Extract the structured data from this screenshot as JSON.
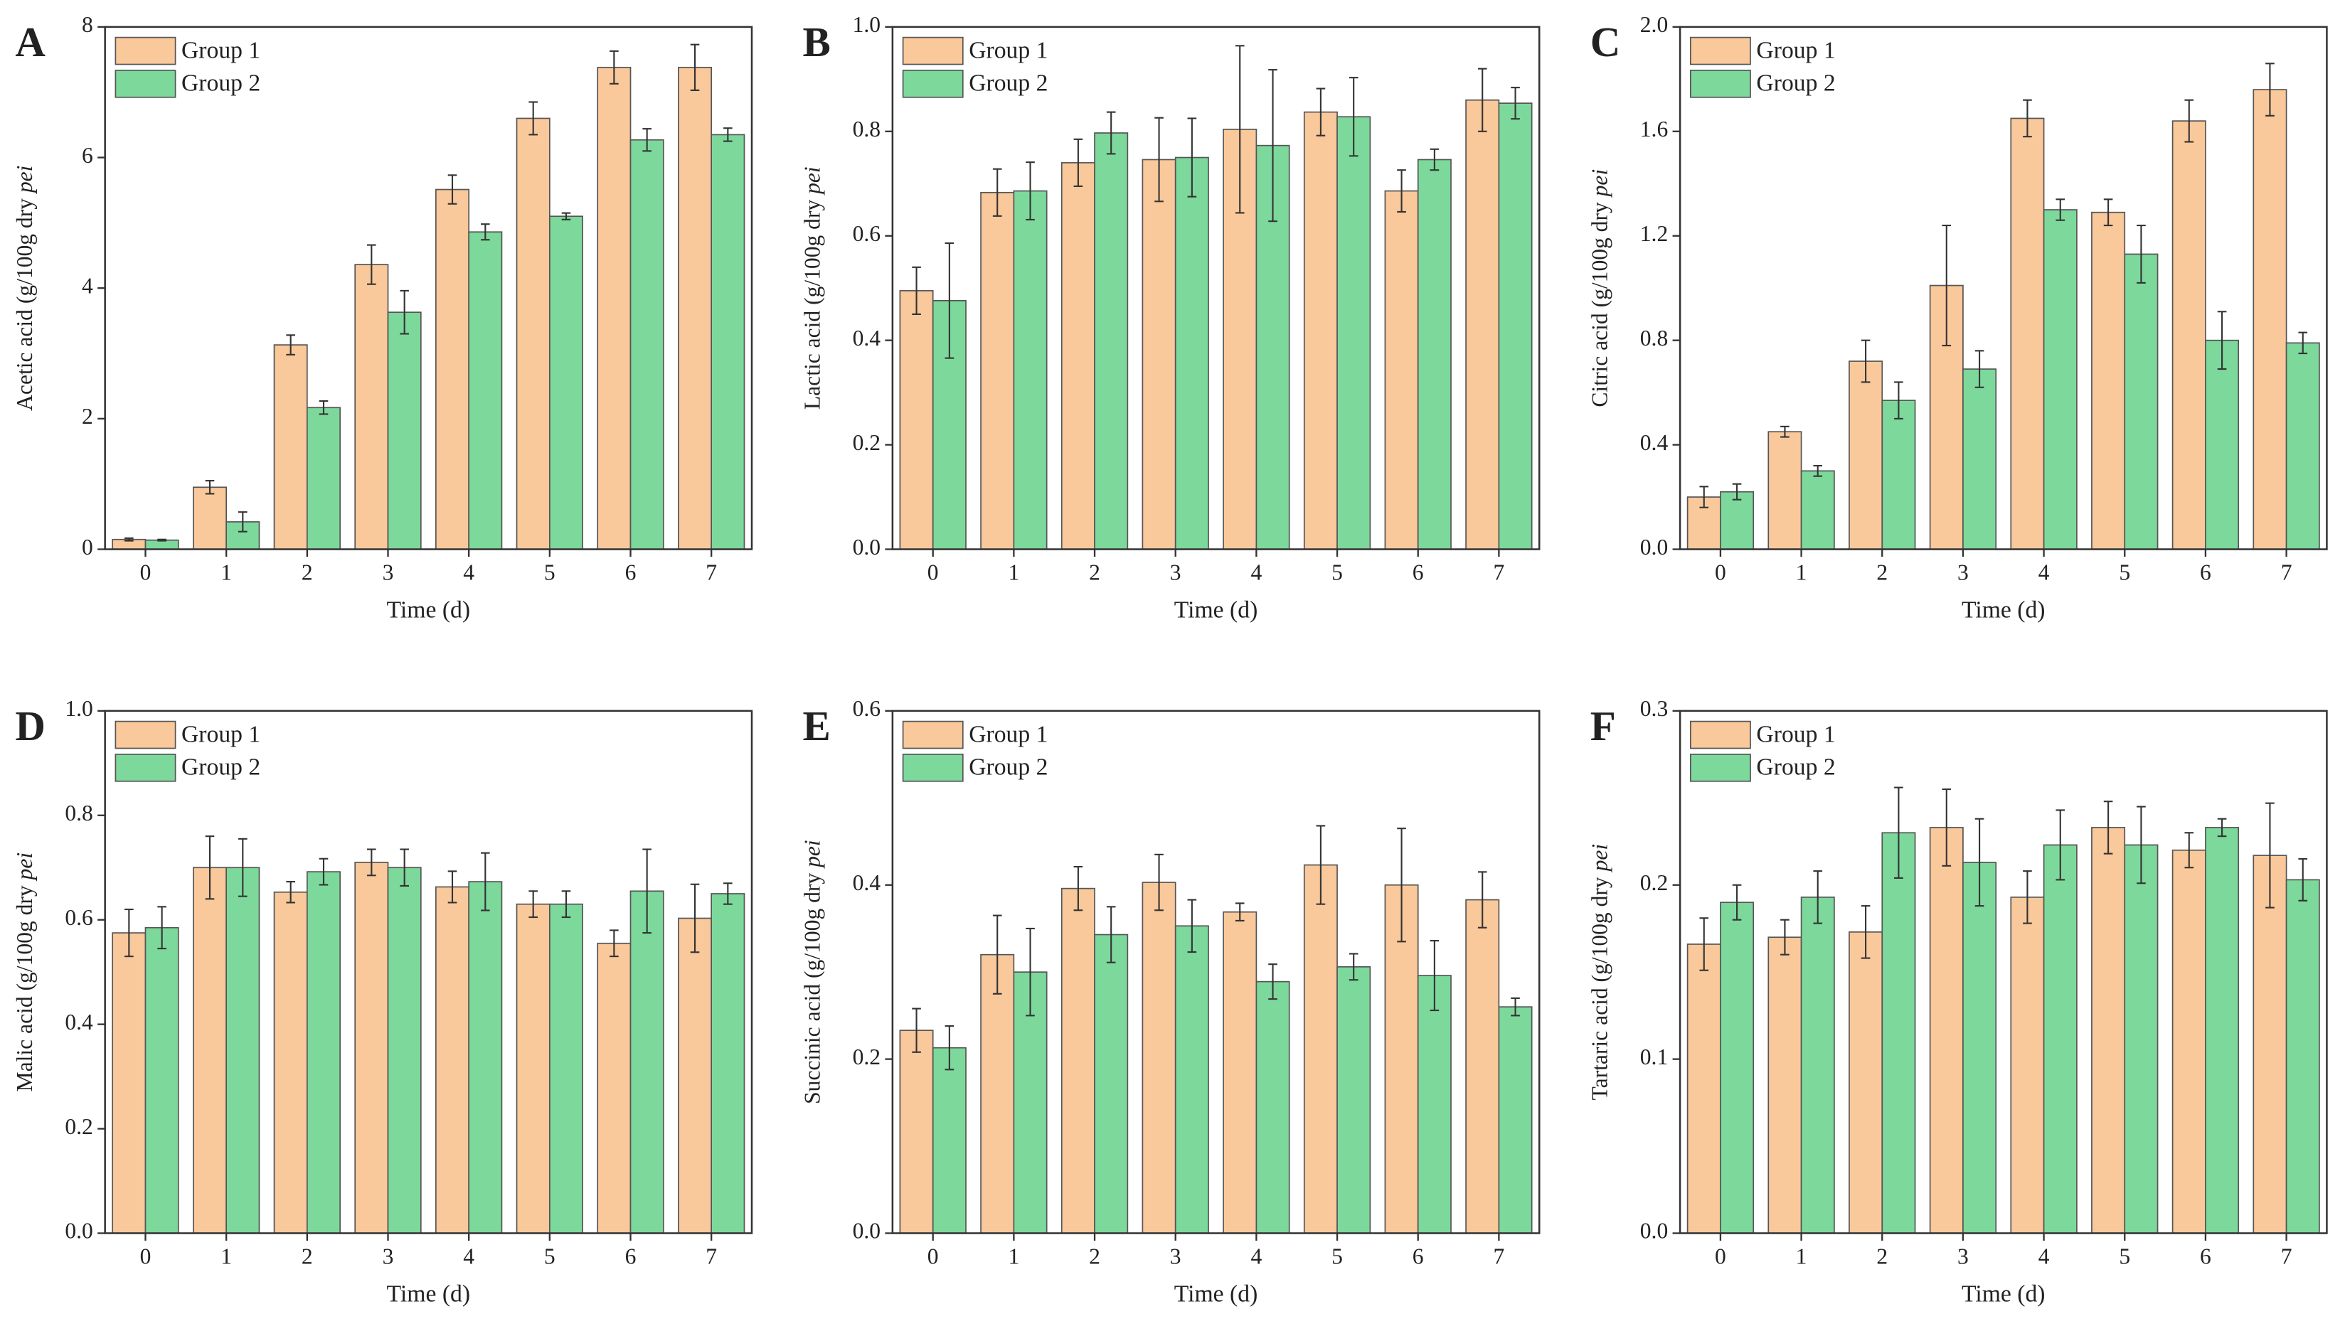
{
  "chart_data": [
    {
      "type": "bar",
      "label": "A",
      "ylabel": "Acetic acid (g/100g dry",
      "ylabel_italic": "pei",
      "xlabel": "Time (d)",
      "categories": [
        "0",
        "1",
        "2",
        "3",
        "4",
        "5",
        "6",
        "7"
      ],
      "series": [
        {
          "name": "Group 1",
          "color": "#f9c89b",
          "values": [
            0.15,
            0.95,
            3.13,
            4.36,
            5.51,
            6.6,
            7.38,
            7.38
          ],
          "errors": [
            0.02,
            0.1,
            0.15,
            0.3,
            0.22,
            0.25,
            0.25,
            0.35
          ]
        },
        {
          "name": "Group 2",
          "color": "#7dd89b",
          "values": [
            0.14,
            0.42,
            2.17,
            3.63,
            4.86,
            5.1,
            6.27,
            6.35
          ],
          "errors": [
            0.01,
            0.15,
            0.1,
            0.33,
            0.12,
            0.05,
            0.17,
            0.1
          ]
        }
      ],
      "ylim": [
        0,
        8
      ],
      "yticks": [
        0,
        2,
        4,
        6,
        8
      ]
    },
    {
      "type": "bar",
      "label": "B",
      "ylabel": "Lactic acid (g/100g dry",
      "ylabel_italic": "pei",
      "xlabel": "Time (d)",
      "categories": [
        "0",
        "1",
        "2",
        "3",
        "4",
        "5",
        "6",
        "7"
      ],
      "series": [
        {
          "name": "Group 1",
          "color": "#f9c89b",
          "values": [
            0.495,
            0.683,
            0.74,
            0.746,
            0.804,
            0.837,
            0.686,
            0.86
          ],
          "errors": [
            0.045,
            0.045,
            0.045,
            0.08,
            0.16,
            0.045,
            0.04,
            0.06
          ]
        },
        {
          "name": "Group 2",
          "color": "#7dd89b",
          "values": [
            0.476,
            0.686,
            0.797,
            0.75,
            0.773,
            0.828,
            0.746,
            0.854
          ],
          "errors": [
            0.11,
            0.055,
            0.04,
            0.075,
            0.145,
            0.075,
            0.02,
            0.03
          ]
        }
      ],
      "ylim": [
        0,
        1
      ],
      "yticks": [
        {
          "value": 0,
          "label": "0.0"
        },
        0.2,
        0.4,
        0.6,
        0.8,
        {
          "value": 1,
          "label": "1.0"
        }
      ]
    },
    {
      "type": "bar",
      "label": "C",
      "ylabel": "Citric acid (g/100g dry",
      "ylabel_italic": "pei",
      "xlabel": "Time (d)",
      "categories": [
        "0",
        "1",
        "2",
        "3",
        "4",
        "5",
        "6",
        "7"
      ],
      "series": [
        {
          "name": "Group 1",
          "color": "#f9c89b",
          "values": [
            0.2,
            0.45,
            0.72,
            1.01,
            1.65,
            1.29,
            1.64,
            1.76
          ],
          "errors": [
            0.04,
            0.02,
            0.08,
            0.23,
            0.07,
            0.05,
            0.08,
            0.1
          ]
        },
        {
          "name": "Group 2",
          "color": "#7dd89b",
          "values": [
            0.22,
            0.3,
            0.57,
            0.69,
            1.3,
            1.13,
            0.8,
            0.79
          ],
          "errors": [
            0.03,
            0.02,
            0.07,
            0.07,
            0.04,
            0.11,
            0.11,
            0.04
          ]
        }
      ],
      "ylim": [
        0,
        2
      ],
      "yticks": [
        {
          "value": 0,
          "label": "0.0"
        },
        0.4,
        0.8,
        1.2,
        1.6,
        {
          "value": 2,
          "label": "2.0"
        }
      ]
    },
    {
      "type": "bar",
      "label": "D",
      "ylabel": "Malic acid (g/100g dry",
      "ylabel_italic": "pei",
      "xlabel": "Time (d)",
      "categories": [
        "0",
        "1",
        "2",
        "3",
        "4",
        "5",
        "6",
        "7"
      ],
      "series": [
        {
          "name": "Group 1",
          "color": "#f9c89b",
          "values": [
            0.575,
            0.7,
            0.653,
            0.71,
            0.663,
            0.63,
            0.555,
            0.603
          ],
          "errors": [
            0.045,
            0.06,
            0.02,
            0.025,
            0.03,
            0.025,
            0.025,
            0.065
          ]
        },
        {
          "name": "Group 2",
          "color": "#7dd89b",
          "values": [
            0.585,
            0.7,
            0.692,
            0.7,
            0.673,
            0.63,
            0.655,
            0.65
          ],
          "errors": [
            0.04,
            0.055,
            0.025,
            0.035,
            0.055,
            0.025,
            0.08,
            0.02
          ]
        }
      ],
      "ylim": [
        0,
        1
      ],
      "yticks": [
        {
          "value": 0,
          "label": "0.0"
        },
        0.2,
        0.4,
        0.6,
        0.8,
        {
          "value": 1,
          "label": "1.0"
        }
      ]
    },
    {
      "type": "bar",
      "label": "E",
      "ylabel": "Succinic acid (g/100g dry",
      "ylabel_italic": "pei",
      "xlabel": "Time (d)",
      "categories": [
        "0",
        "1",
        "2",
        "3",
        "4",
        "5",
        "6",
        "7"
      ],
      "series": [
        {
          "name": "Group 1",
          "color": "#f9c89b",
          "values": [
            0.233,
            0.32,
            0.396,
            0.403,
            0.369,
            0.423,
            0.4,
            0.383
          ],
          "errors": [
            0.025,
            0.045,
            0.025,
            0.032,
            0.01,
            0.045,
            0.065,
            0.032
          ]
        },
        {
          "name": "Group 2",
          "color": "#7dd89b",
          "values": [
            0.213,
            0.3,
            0.343,
            0.353,
            0.289,
            0.306,
            0.296,
            0.26
          ],
          "errors": [
            0.025,
            0.05,
            0.032,
            0.03,
            0.02,
            0.015,
            0.04,
            0.01
          ]
        }
      ],
      "ylim": [
        0,
        0.6
      ],
      "yticks": [
        {
          "value": 0,
          "label": "0.0"
        },
        0.2,
        0.4,
        0.6
      ]
    },
    {
      "type": "bar",
      "label": "F",
      "ylabel": "Tartaric acid (g/100g dry",
      "ylabel_italic": "pei",
      "xlabel": "Time (d)",
      "categories": [
        "0",
        "1",
        "2",
        "3",
        "4",
        "5",
        "6",
        "7"
      ],
      "series": [
        {
          "name": "Group 1",
          "color": "#f9c89b",
          "values": [
            0.166,
            0.17,
            0.173,
            0.233,
            0.193,
            0.233,
            0.22,
            0.217
          ],
          "errors": [
            0.015,
            0.01,
            0.015,
            0.022,
            0.015,
            0.015,
            0.01,
            0.03
          ]
        },
        {
          "name": "Group 2",
          "color": "#7dd89b",
          "values": [
            0.19,
            0.193,
            0.23,
            0.213,
            0.223,
            0.223,
            0.233,
            0.203
          ],
          "errors": [
            0.01,
            0.015,
            0.026,
            0.025,
            0.02,
            0.022,
            0.005,
            0.012
          ]
        }
      ],
      "ylim": [
        0,
        0.3
      ],
      "yticks": [
        {
          "value": 0,
          "label": "0.0"
        },
        0.1,
        0.2,
        0.3
      ]
    }
  ]
}
